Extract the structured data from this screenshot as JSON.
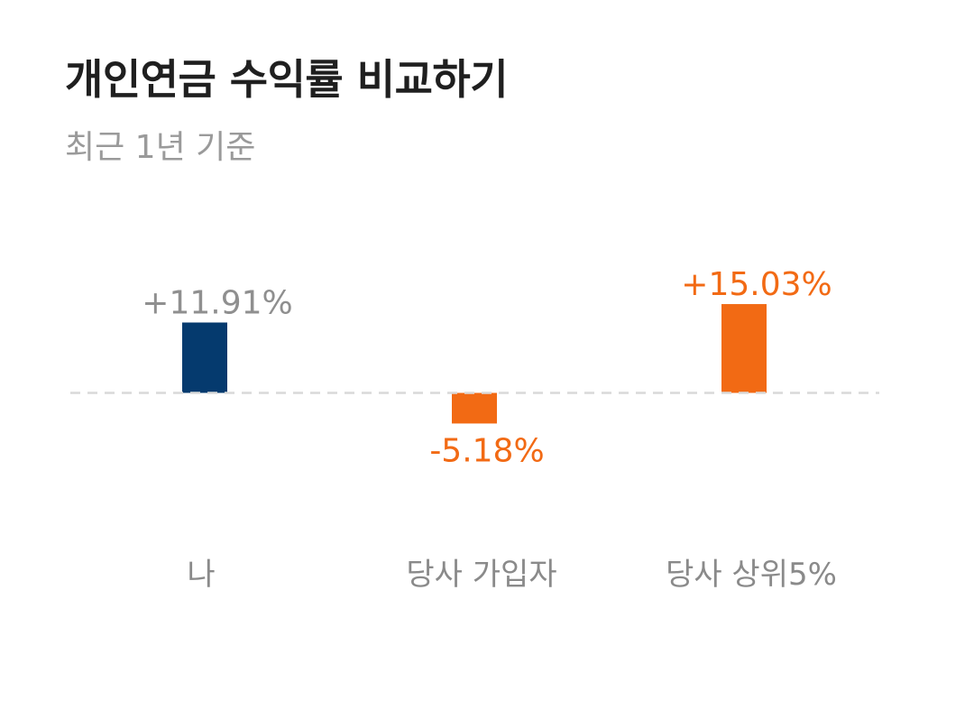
{
  "header": {
    "title": "개인연금 수익률 비교하기",
    "subtitle": "최근 1년 기준"
  },
  "chart_data": {
    "type": "bar",
    "title": "개인연금 수익률 비교하기",
    "subtitle": "최근 1년 기준",
    "xlabel": "",
    "ylabel": "",
    "ylim": [
      -15,
      20
    ],
    "grid": false,
    "categories": [
      "나",
      "당사 가입자",
      "당사 상위5%"
    ],
    "values": [
      11.91,
      -5.18,
      15.03
    ],
    "value_labels": [
      "+11.91%",
      "-5.18%",
      "+15.03%"
    ],
    "bar_colors": [
      "#053a6e",
      "#f26a14",
      "#f26a14"
    ],
    "label_colors": [
      "#8f8f8f",
      "#f26a14",
      "#f26a14"
    ],
    "baseline_color": "#d9d9d9"
  }
}
